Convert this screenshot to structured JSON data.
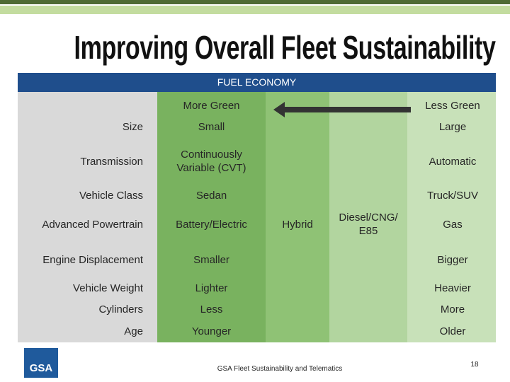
{
  "header": {
    "title": "Improving Overall Fleet Sustainability"
  },
  "table": {
    "title": "FUEL ECONOMY",
    "more_green": "More Green",
    "less_green": "Less Green",
    "rows": [
      {
        "label": "Size",
        "cells": [
          "Small",
          "Large"
        ]
      },
      {
        "label": "Transmission",
        "cells": [
          "Continuously Variable (CVT)",
          "Automatic"
        ]
      },
      {
        "label": "Vehicle Class",
        "cells": [
          "Sedan",
          "Truck/SUV"
        ]
      },
      {
        "label": "Advanced Powertrain",
        "cells": [
          "Battery/Electric",
          "Hybrid",
          "Diesel/CNG/ E85",
          "Gas"
        ]
      },
      {
        "label": "Engine Displacement",
        "cells": [
          "Smaller",
          "Bigger"
        ]
      },
      {
        "label": "Vehicle Weight",
        "cells": [
          "Lighter",
          "Heavier"
        ]
      },
      {
        "label": "Cylinders",
        "cells": [
          "Less",
          "More"
        ]
      },
      {
        "label": "Age",
        "cells": [
          "Younger",
          "Older"
        ]
      }
    ]
  },
  "footer": {
    "logo": "GSA",
    "text": "GSA Fleet Sustainability and Telematics",
    "page": "18"
  }
}
